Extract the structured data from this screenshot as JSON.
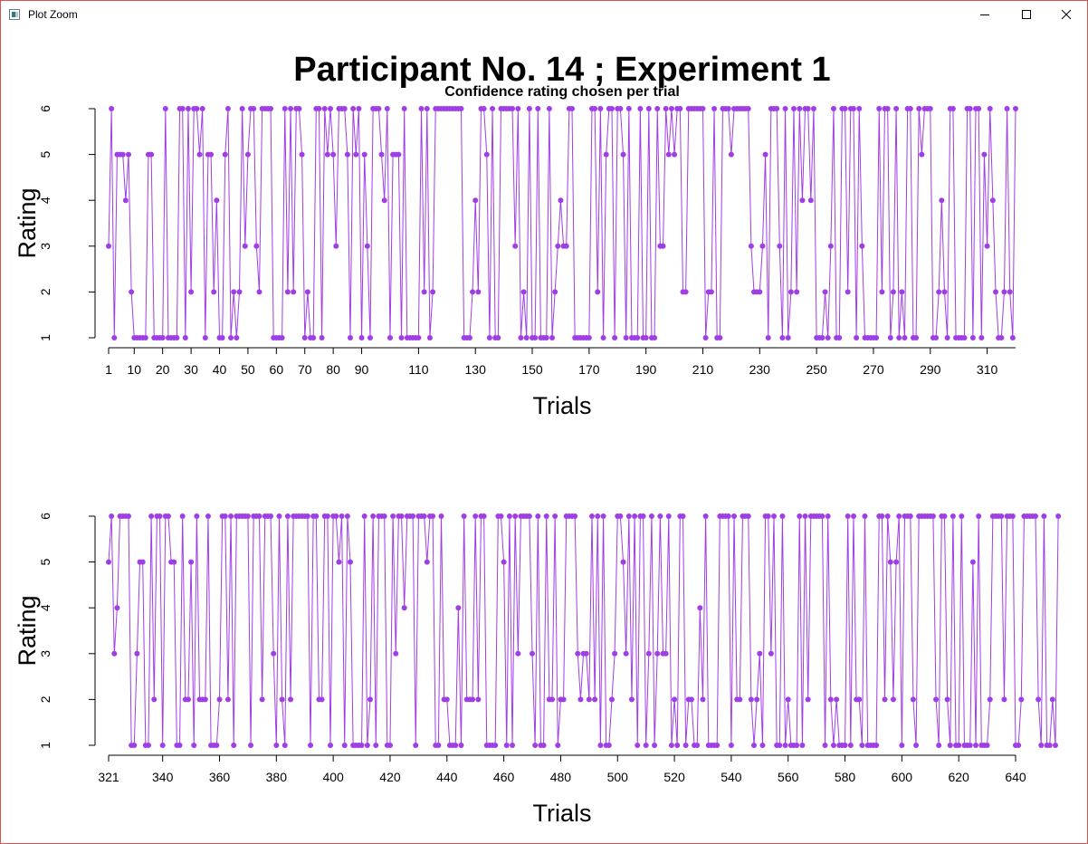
{
  "window": {
    "title": "Plot Zoom",
    "controls": [
      "minimize-icon",
      "maximize-icon",
      "close-icon"
    ]
  },
  "figure": {
    "title": "Participant No. 14 ; Experiment 1",
    "subtitle": "Confidence rating chosen per trial"
  },
  "colors": {
    "series": "#a03ee6",
    "text": "#000000",
    "axis": "#000000"
  },
  "chart_data": [
    {
      "type": "line",
      "xlabel": "Trials",
      "ylabel": "Rating",
      "xlim": [
        1,
        320
      ],
      "ylim": [
        1,
        6
      ],
      "yticks": [
        1,
        2,
        3,
        4,
        5,
        6
      ],
      "xticks": [
        1,
        10,
        20,
        30,
        40,
        50,
        60,
        70,
        80,
        90,
        110,
        130,
        150,
        170,
        190,
        210,
        230,
        250,
        270,
        290,
        310
      ],
      "grid": false,
      "series": [
        {
          "x_start": 1,
          "values": [
            3,
            6,
            1,
            5,
            5,
            5,
            4,
            5,
            2,
            1,
            1,
            1,
            1,
            1,
            5,
            5,
            1,
            1,
            1,
            1,
            6,
            1,
            1,
            1,
            1,
            6,
            6,
            1,
            6,
            2,
            6,
            6,
            5,
            6,
            1,
            5,
            5,
            2,
            4,
            1,
            1,
            5,
            6,
            1,
            2,
            1,
            2,
            6,
            3,
            5,
            6,
            6,
            3,
            2,
            6,
            6,
            6,
            6,
            1,
            1,
            1,
            1,
            6,
            2,
            6,
            2,
            6,
            6,
            5,
            1,
            2,
            1,
            1,
            6,
            6,
            1,
            6,
            5,
            6,
            5,
            3,
            6,
            6,
            6,
            5,
            1,
            6,
            5,
            6,
            1,
            5,
            3,
            1,
            6,
            6,
            6,
            5,
            4,
            6,
            1,
            5,
            5,
            5,
            1,
            6,
            1,
            1,
            1,
            1,
            1,
            6,
            2,
            6,
            1,
            2,
            6,
            6,
            6,
            6,
            6,
            6,
            6,
            6,
            6,
            6,
            1,
            1,
            1,
            2,
            4,
            2,
            6,
            6,
            5,
            1,
            6,
            1,
            1,
            6,
            6,
            6,
            6,
            6,
            3,
            6,
            1,
            2,
            1,
            6,
            1,
            1,
            6,
            1,
            1,
            1,
            6,
            1,
            2,
            3,
            4,
            3,
            3,
            6,
            6,
            1,
            1,
            1,
            1,
            1,
            1,
            6,
            6,
            2,
            6,
            1,
            5,
            6,
            6,
            1,
            6,
            6,
            5,
            1,
            6,
            1,
            1,
            1,
            6,
            1,
            1,
            6,
            1,
            1,
            6,
            3,
            3,
            6,
            5,
            6,
            5,
            6,
            6,
            2,
            2,
            6,
            6,
            6,
            6,
            6,
            6,
            1,
            2,
            2,
            6,
            1,
            1,
            6,
            6,
            6,
            5,
            6,
            6,
            6,
            6,
            6,
            6,
            3,
            2,
            2,
            2,
            3,
            5,
            1,
            6,
            6,
            6,
            3,
            1,
            6,
            1,
            2,
            6,
            2,
            6,
            4,
            6,
            6,
            4,
            6,
            1,
            1,
            1,
            2,
            1,
            3,
            6,
            1,
            1,
            6,
            6,
            2,
            6,
            6,
            1,
            6,
            3,
            1,
            1,
            1,
            1,
            1,
            6,
            2,
            6,
            6,
            1,
            2,
            6,
            1,
            2,
            1,
            6,
            6,
            1,
            1,
            6,
            5,
            6,
            6,
            6,
            1,
            1,
            2,
            4,
            2,
            1,
            6,
            6,
            1,
            1,
            1,
            1,
            6,
            6,
            1,
            6,
            6,
            1,
            5,
            3,
            6,
            4,
            2,
            1,
            1,
            2,
            6,
            2,
            1,
            6
          ]
        }
      ]
    },
    {
      "type": "line",
      "xlabel": "Trials",
      "ylabel": "Rating",
      "xlim": [
        321,
        640
      ],
      "ylim": [
        1,
        6
      ],
      "yticks": [
        1,
        2,
        3,
        4,
        5,
        6
      ],
      "xticks": [
        321,
        340,
        360,
        380,
        400,
        420,
        440,
        460,
        480,
        500,
        520,
        540,
        560,
        580,
        600,
        620,
        640
      ],
      "grid": false,
      "series": [
        {
          "x_start": 321,
          "values": [
            5,
            6,
            3,
            4,
            6,
            6,
            6,
            6,
            1,
            1,
            3,
            5,
            5,
            1,
            1,
            6,
            2,
            6,
            6,
            1,
            6,
            6,
            5,
            5,
            1,
            1,
            6,
            2,
            2,
            5,
            1,
            6,
            2,
            2,
            2,
            6,
            1,
            1,
            1,
            2,
            6,
            6,
            2,
            6,
            1,
            6,
            6,
            6,
            6,
            6,
            1,
            6,
            6,
            6,
            2,
            6,
            6,
            6,
            3,
            1,
            6,
            2,
            1,
            6,
            2,
            6,
            6,
            6,
            6,
            6,
            6,
            1,
            6,
            6,
            2,
            2,
            6,
            6,
            1,
            6,
            6,
            5,
            6,
            1,
            6,
            5,
            1,
            1,
            1,
            1,
            6,
            1,
            2,
            6,
            1,
            6,
            6,
            6,
            1,
            1,
            6,
            3,
            6,
            6,
            4,
            6,
            6,
            6,
            1,
            6,
            6,
            6,
            5,
            6,
            6,
            1,
            1,
            6,
            2,
            2,
            1,
            1,
            1,
            4,
            1,
            6,
            2,
            2,
            2,
            6,
            2,
            6,
            6,
            1,
            1,
            1,
            1,
            6,
            6,
            5,
            1,
            6,
            1,
            6,
            3,
            6,
            6,
            6,
            6,
            3,
            1,
            6,
            1,
            1,
            6,
            2,
            2,
            6,
            1,
            2,
            2,
            6,
            6,
            6,
            6,
            3,
            2,
            3,
            3,
            2,
            6,
            2,
            6,
            1,
            6,
            1,
            1,
            2,
            3,
            6,
            6,
            5,
            3,
            6,
            2,
            6,
            1,
            6,
            6,
            1,
            3,
            6,
            1,
            3,
            6,
            3,
            3,
            6,
            1,
            2,
            1,
            6,
            6,
            1,
            2,
            2,
            1,
            1,
            4,
            2,
            6,
            1,
            1,
            1,
            1,
            6,
            6,
            6,
            6,
            1,
            6,
            2,
            2,
            6,
            6,
            6,
            2,
            1,
            2,
            3,
            1,
            6,
            6,
            3,
            6,
            1,
            1,
            6,
            1,
            2,
            1,
            1,
            1,
            6,
            1,
            6,
            2,
            6,
            6,
            6,
            6,
            6,
            1,
            6,
            2,
            1,
            2,
            1,
            1,
            1,
            6,
            1,
            6,
            2,
            2,
            1,
            6,
            1,
            1,
            1,
            1,
            6,
            6,
            2,
            6,
            5,
            2,
            5,
            6,
            1,
            6,
            6,
            6,
            2,
            1,
            6,
            6,
            6,
            6,
            6,
            6,
            2,
            1,
            6,
            6,
            2,
            1,
            6,
            1,
            1,
            6,
            1,
            1,
            1,
            5,
            1,
            6,
            1,
            1,
            1,
            2,
            6,
            6,
            6,
            6,
            2,
            6,
            6,
            6,
            1,
            1,
            2,
            6,
            6,
            6,
            6,
            6,
            2,
            1,
            6,
            1,
            1,
            2,
            1,
            6
          ]
        }
      ]
    }
  ]
}
